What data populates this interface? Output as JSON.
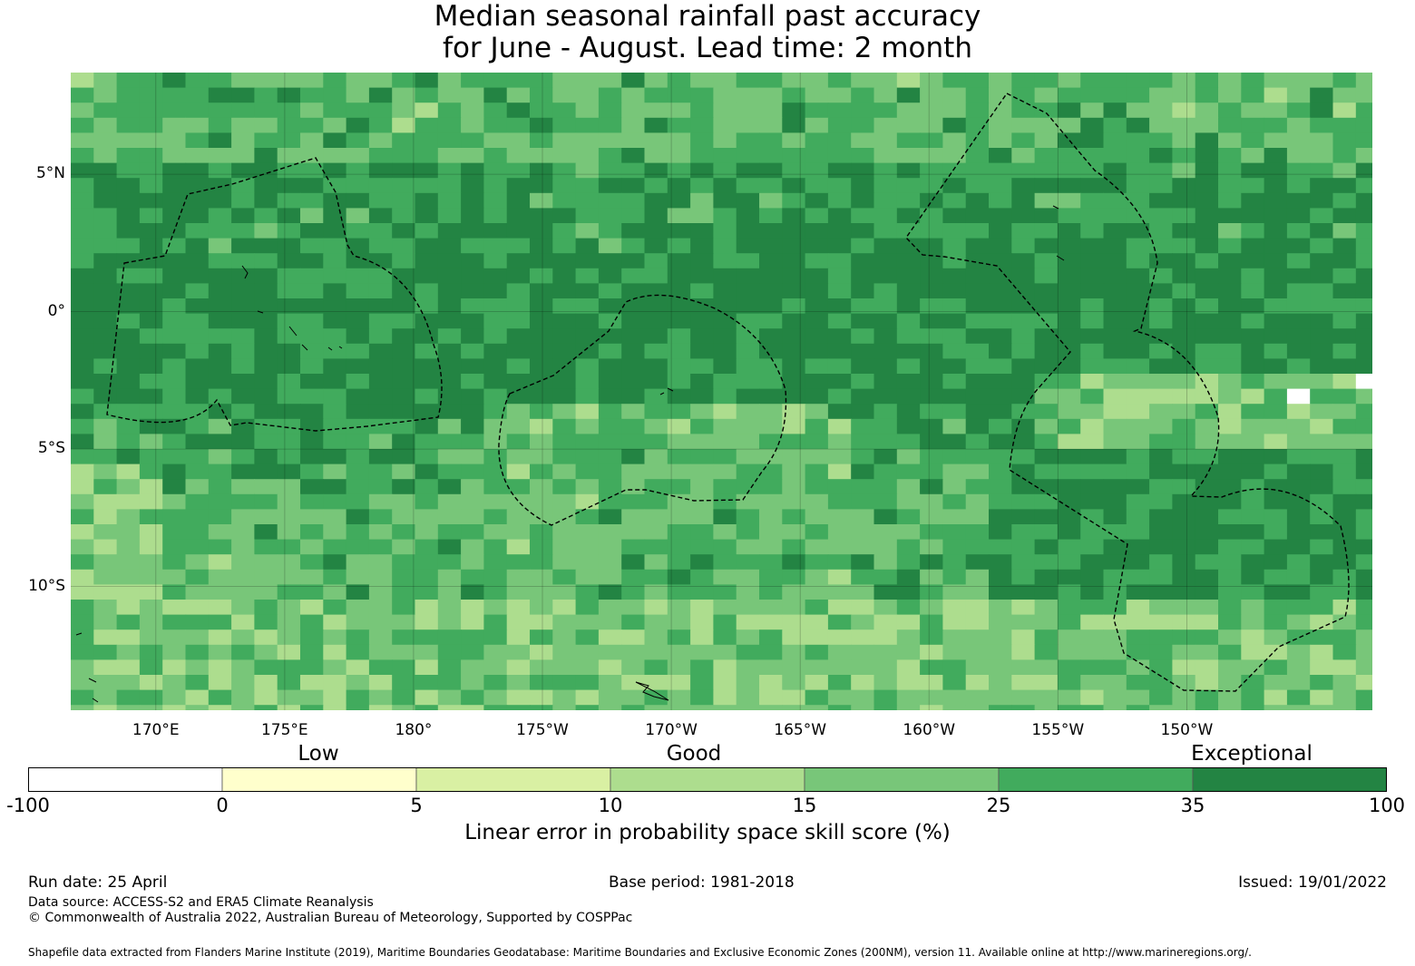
{
  "title_line1": "Median seasonal rainfall past accuracy",
  "title_line2": "for June - August. Lead time: 2 month",
  "map": {
    "lon_range": [
      166.7,
      -142.8
    ],
    "lat_range": [
      -14.5,
      8.7
    ],
    "lat_ticks": [
      {
        "lat": 5,
        "label": "5°N"
      },
      {
        "lat": 0,
        "label": "0°"
      },
      {
        "lat": -5,
        "label": "5°S"
      },
      {
        "lat": -10,
        "label": "10°S"
      }
    ],
    "lon_ticks": [
      {
        "lon": 170,
        "label": "170°E"
      },
      {
        "lon": 175,
        "label": "175°E"
      },
      {
        "lon": 180,
        "label": "180°"
      },
      {
        "lon": 185,
        "label": "175°W"
      },
      {
        "lon": 190,
        "label": "170°W"
      },
      {
        "lon": 195,
        "label": "165°W"
      },
      {
        "lon": 200,
        "label": "160°W"
      },
      {
        "lon": 205,
        "label": "155°W"
      },
      {
        "lon": 210,
        "label": "150°W"
      }
    ],
    "grid_lines": true,
    "class_colors": [
      "#ffffff",
      "#ffffcc",
      "#d9f0a3",
      "#addd8e",
      "#78c679",
      "#41ab5d",
      "#238443"
    ]
  },
  "colorbar": {
    "category_labels": [
      {
        "label": "Low",
        "position": "left"
      },
      {
        "label": "Good",
        "position": "center"
      },
      {
        "label": "Exceptional",
        "position": "right"
      }
    ],
    "bins": [
      {
        "from": "-100",
        "to": "0",
        "color": "#ffffff"
      },
      {
        "from": "0",
        "to": "5",
        "color": "#ffffcc"
      },
      {
        "from": "5",
        "to": "10",
        "color": "#d9f0a3"
      },
      {
        "from": "10",
        "to": "15",
        "color": "#addd8e"
      },
      {
        "from": "15",
        "to": "25",
        "color": "#78c679"
      },
      {
        "from": "25",
        "to": "35",
        "color": "#41ab5d"
      },
      {
        "from": "35",
        "to": "100",
        "color": "#238443"
      }
    ],
    "tick_labels": [
      "-100",
      "0",
      "5",
      "10",
      "15",
      "25",
      "35",
      "100"
    ],
    "title": "Linear error in probability space skill score (%)"
  },
  "footer": {
    "run_date": "Run date: 25 April",
    "base_period": "Base period: 1981-2018",
    "issued": "Issued: 19/01/2022",
    "data_source": "Data source: ACCESS-S2 and ERA5 Climate Reanalysis",
    "copyright": "© Commonwealth of Australia 2022, Australian Bureau of Meteorology, Supported by COSPPac",
    "shapefile": "Shapefile data extracted from Flanders Marine Institute (2019), Maritime Boundaries Geodatabase: Maritime Boundaries and Exclusive Economic Zones (200NM), version 11. Available online at http://www.marineregions.org/."
  }
}
